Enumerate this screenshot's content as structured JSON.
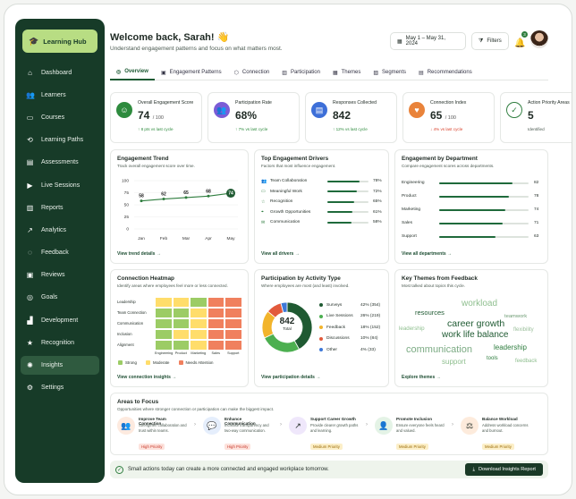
{
  "brand": {
    "name": "Learning Hub"
  },
  "nav": [
    {
      "label": "Dashboard",
      "icon": "home-icon",
      "glyph": "⌂"
    },
    {
      "label": "Learners",
      "icon": "users-icon",
      "glyph": "👥"
    },
    {
      "label": "Courses",
      "icon": "book-icon",
      "glyph": "▭"
    },
    {
      "label": "Learning Paths",
      "icon": "path-icon",
      "glyph": "⟲"
    },
    {
      "label": "Assessments",
      "icon": "clipboard-icon",
      "glyph": "▤"
    },
    {
      "label": "Live Sessions",
      "icon": "video-icon",
      "glyph": "▶"
    },
    {
      "label": "Reports",
      "icon": "report-icon",
      "glyph": "▥"
    },
    {
      "label": "Analytics",
      "icon": "analytics-icon",
      "glyph": "↗"
    },
    {
      "label": "Feedback",
      "icon": "chat-icon",
      "glyph": "◌"
    },
    {
      "label": "Reviews",
      "icon": "review-icon",
      "glyph": "▣"
    },
    {
      "label": "Goals",
      "icon": "target-icon",
      "glyph": "◎"
    },
    {
      "label": "Development",
      "icon": "growth-icon",
      "glyph": "▟"
    },
    {
      "label": "Recognition",
      "icon": "star-icon",
      "glyph": "★"
    },
    {
      "label": "Insights",
      "icon": "bulb-icon",
      "glyph": "✺",
      "active": true
    },
    {
      "label": "Settings",
      "icon": "gear-icon",
      "glyph": "⚙"
    }
  ],
  "header": {
    "title": "Welcome back, Sarah! 👋",
    "subtitle": "Understand engagement patterns and focus on what matters most.",
    "date_range": "May 1 – May 31, 2024",
    "filters": "Filters",
    "notif_count": "3"
  },
  "tabs": [
    {
      "label": "Overview",
      "active": true
    },
    {
      "label": "Engagement Patterns"
    },
    {
      "label": "Connection"
    },
    {
      "label": "Participation"
    },
    {
      "label": "Themes"
    },
    {
      "label": "Segments"
    },
    {
      "label": "Recommendations"
    }
  ],
  "kpis": [
    {
      "label": "Overall Engagement Score",
      "value": "74",
      "suffix": "/ 100",
      "delta": "↑ 8 pts vs last cycle",
      "color": "#2e8b3e",
      "deltaColor": "#2e8b3e",
      "glyph": "☺"
    },
    {
      "label": "Participation Rate",
      "value": "68%",
      "suffix": "",
      "delta": "↑ 7% vs last cycle",
      "color": "#7b5cd6",
      "deltaColor": "#2e8b3e",
      "glyph": "👥"
    },
    {
      "label": "Responses Collected",
      "value": "842",
      "suffix": "",
      "delta": "↑ 12% vs last cycle",
      "color": "#3d6fd8",
      "deltaColor": "#2e8b3e",
      "glyph": "▤"
    },
    {
      "label": "Connection Index",
      "value": "65",
      "suffix": "/ 100",
      "delta": "↓ 4% vs last cycle",
      "color": "#e9833a",
      "deltaColor": "#d9412b",
      "glyph": "♥"
    },
    {
      "label": "Action Priority Areas",
      "value": "5",
      "suffix": "",
      "delta": "Identified",
      "color": "#ffffff",
      "deltaColor": "#4b5a51",
      "glyph": "✓"
    }
  ],
  "trend": {
    "title": "Engagement Trend",
    "subtitle": "Track overall engagement score over time.",
    "link": "View trend details  →",
    "chart_data": {
      "type": "line",
      "x": [
        "Jan",
        "Feb",
        "Mar",
        "Apr",
        "May"
      ],
      "values": [
        58,
        62,
        65,
        68,
        74
      ],
      "ylim": [
        0,
        100
      ],
      "yticks": [
        "100",
        "75",
        "50",
        "25",
        "0"
      ]
    }
  },
  "drivers": {
    "title": "Top Engagement Drivers",
    "subtitle": "Factors that most influence engagement.",
    "link": "View all drivers  →",
    "items": [
      {
        "label": "Team Collaboration",
        "value": 78,
        "text": "78%"
      },
      {
        "label": "Meaningful Work",
        "value": 72,
        "text": "72%"
      },
      {
        "label": "Recognition",
        "value": 65,
        "text": "65%"
      },
      {
        "label": "Growth Opportunities",
        "value": 61,
        "text": "61%"
      },
      {
        "label": "Communication",
        "value": 58,
        "text": "58%"
      }
    ]
  },
  "dept": {
    "title": "Engagement by Department",
    "subtitle": "Compare engagement scores across departments.",
    "link": "View all departments  →",
    "chart_data": {
      "type": "bar",
      "categories": [
        "Engineering",
        "Product",
        "Marketing",
        "Sales",
        "Support"
      ],
      "values": [
        82,
        78,
        74,
        71,
        63
      ],
      "xlim": [
        0,
        100
      ]
    }
  },
  "heatmap": {
    "title": "Connection Heatmap",
    "subtitle": "Identify areas where employees feel more or less connected.",
    "link": "View connection insights  →",
    "rows": [
      "Leadership",
      "Team Connection",
      "Communication",
      "Inclusion",
      "Alignment"
    ],
    "cols": [
      "Engineering",
      "Product",
      "Marketing",
      "Sales",
      "Support"
    ],
    "legend": [
      "Strong",
      "Moderate",
      "Needs Attention"
    ],
    "cells": [
      [
        "m",
        "m",
        "s",
        "n",
        "n"
      ],
      [
        "s",
        "s",
        "m",
        "n",
        "n"
      ],
      [
        "s",
        "s",
        "m",
        "n",
        "n"
      ],
      [
        "s",
        "m",
        "m",
        "n",
        "n"
      ],
      [
        "s",
        "s",
        "m",
        "n",
        "n"
      ]
    ]
  },
  "participation": {
    "title": "Participation by Activity Type",
    "subtitle": "Where employees are most (and least) involved.",
    "link": "View participation details  →",
    "center_value": "842",
    "center_label": "Total",
    "chart_data": {
      "type": "pie",
      "categories": [
        "Surveys",
        "Live Sessions",
        "Feedback",
        "Discussions",
        "Other"
      ],
      "values": [
        42,
        26,
        18,
        10,
        4
      ],
      "labels": [
        "42% (354)",
        "26% (219)",
        "18% (152)",
        "10% (84)",
        "4% (33)"
      ],
      "colors": [
        "#1f5a32",
        "#4caf50",
        "#f2b42b",
        "#e25a3c",
        "#3d78d8"
      ]
    }
  },
  "themes": {
    "title": "Key Themes from Feedback",
    "subtitle": "Most talked about topics this cycle.",
    "link": "Explore themes  →",
    "words": [
      "workload",
      "resources",
      "teamwork",
      "career growth",
      "flexibility",
      "leadership",
      "work life balance",
      "communication",
      "leadership",
      "support",
      "tools",
      "feedback"
    ]
  },
  "focus": {
    "title": "Areas to Focus",
    "subtitle": "Opportunities where stronger connection or participation can make the biggest impact.",
    "items": [
      {
        "title": "Improve Team Connection",
        "desc": "Strengthen collaboration and trust within teams.",
        "priority": "High Priority",
        "icon": "team-icon",
        "glyph": "👥",
        "bg": "#fdeadf",
        "pri": "high"
      },
      {
        "title": "Enhance Communication",
        "desc": "Increase transparency and two-way communication.",
        "priority": "High Priority",
        "icon": "chat-icon",
        "glyph": "💬",
        "bg": "#e5eefc",
        "pri": "high"
      },
      {
        "title": "Support Career Growth",
        "desc": "Provide clearer growth paths and learning.",
        "priority": "Medium Priority",
        "icon": "growth-icon",
        "glyph": "↗",
        "bg": "#efe7fb",
        "pri": "med"
      },
      {
        "title": "Promote Inclusion",
        "desc": "Ensure everyone feels heard and valued.",
        "priority": "Medium Priority",
        "icon": "inclusion-icon",
        "glyph": "👤",
        "bg": "#e4f3e6",
        "pri": "med"
      },
      {
        "title": "Balance Workload",
        "desc": "Address workload concerns and burnout.",
        "priority": "Medium Priority",
        "icon": "balance-icon",
        "glyph": "⚖",
        "bg": "#fdebdc",
        "pri": "med"
      }
    ]
  },
  "footer": {
    "text": "Small actions today can create a more connected and engaged workplace tomorrow.",
    "download": "Download Insights Report"
  }
}
